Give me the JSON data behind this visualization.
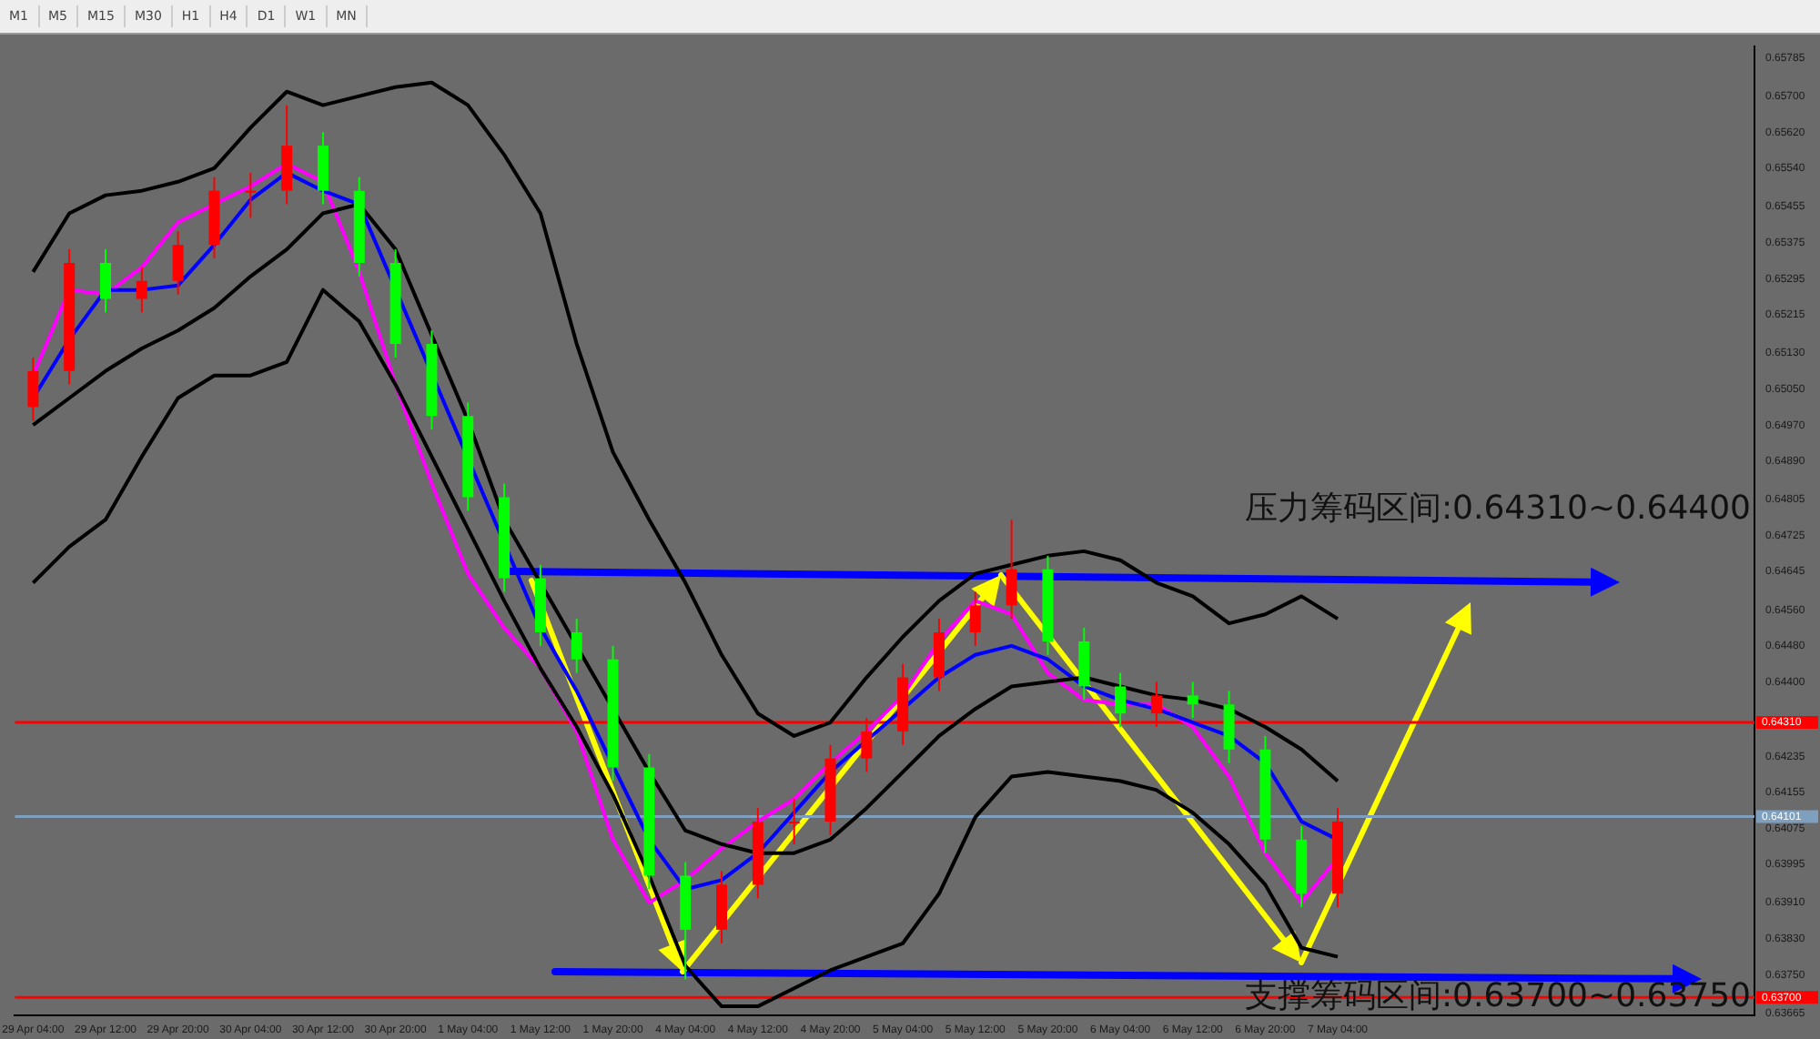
{
  "chart_data": [
    {
      "type": "other",
      "annotations": [
        "M1",
        "M5",
        "M15",
        "M30",
        "H1",
        "H4",
        "D1",
        "W1",
        "MN"
      ]
    },
    {
      "type": "candlestick",
      "annotations": [
        "压力筹码区间:0.64310~0.64400",
        {
          "text": "支撑筹码区间:0.63700~0.63750",
          "y": 0.637
        }
      ],
      "categories": [
        "29 Apr 04:00",
        null,
        "29 Apr 12:00",
        null,
        "29 Apr 20:00",
        null,
        "30 Apr 04:00",
        null,
        "30 Apr 12:00",
        null,
        "30 Apr 20:00",
        null,
        "1 May 04:00",
        null,
        "1 May 12:00",
        null,
        "1 May 20:00",
        null,
        "4 May 04:00",
        null,
        "4 May 12:00",
        null,
        "4 May 20:00",
        null,
        "5 May 04:00",
        null,
        "5 May 12:00",
        null,
        "5 May 20:00",
        null,
        "6 May 04:00",
        null,
        "6 May 12:00",
        null,
        "6 May 20:00",
        null,
        "7 May 04:00",
        null,
        null,
        null,
        null,
        null,
        null,
        null,
        null,
        null,
        null,
        null
      ],
      "ohlc": [
        [
          0.6501,
          0.6512,
          0.6498,
          0.6509
        ],
        [
          0.6509,
          0.6536,
          0.6506,
          0.6533
        ],
        [
          0.6533,
          0.6536,
          0.6522,
          0.6525
        ],
        [
          0.6525,
          0.6532,
          0.6522,
          0.6529
        ],
        [
          0.6529,
          0.654,
          0.6526,
          0.6537
        ],
        [
          0.6537,
          0.6552,
          0.6534,
          0.6549
        ],
        [
          0.6549,
          0.6553,
          0.6543,
          0.6549
        ],
        [
          0.6549,
          0.6568,
          0.6546,
          0.6559
        ],
        [
          0.6559,
          0.6562,
          0.6546,
          0.6549
        ],
        [
          0.6549,
          0.6552,
          0.653,
          0.6533
        ],
        [
          0.6533,
          0.6536,
          0.6512,
          0.6515
        ],
        [
          0.6515,
          0.6518,
          0.6496,
          0.6499
        ],
        [
          0.6499,
          0.6502,
          0.6478,
          0.6481
        ],
        [
          0.6481,
          0.6484,
          0.646,
          0.6463
        ],
        [
          0.6463,
          0.6466,
          0.6448,
          0.6451
        ],
        [
          0.6451,
          0.6454,
          0.6442,
          0.6445
        ],
        [
          0.6445,
          0.6448,
          0.6418,
          0.6421
        ],
        [
          0.6421,
          0.6424,
          0.6394,
          0.6397
        ],
        [
          0.6397,
          0.64,
          0.6374,
          0.6385
        ],
        [
          0.6385,
          0.6398,
          0.6382,
          0.6395
        ],
        [
          0.6395,
          0.6412,
          0.6392,
          0.6409
        ],
        [
          0.6409,
          0.6414,
          0.6404,
          0.6409
        ],
        [
          0.6409,
          0.6426,
          0.6406,
          0.6423
        ],
        [
          0.6423,
          0.6432,
          0.642,
          0.6429
        ],
        [
          0.6429,
          0.6444,
          0.6426,
          0.6441
        ],
        [
          0.6441,
          0.6454,
          0.6438,
          0.6451
        ],
        [
          0.6451,
          0.646,
          0.6448,
          0.6457
        ],
        [
          0.6457,
          0.6476,
          0.6454,
          0.6465
        ],
        [
          0.6465,
          0.6468,
          0.6446,
          0.6449
        ],
        [
          0.6449,
          0.6452,
          0.6436,
          0.6439
        ],
        [
          0.6439,
          0.6442,
          0.643,
          0.6433
        ],
        [
          0.6433,
          0.644,
          0.643,
          0.6437
        ],
        [
          0.6437,
          0.644,
          0.6432,
          0.6435
        ],
        [
          0.6435,
          0.6438,
          0.6422,
          0.6425
        ],
        [
          0.6425,
          0.6428,
          0.6402,
          0.6405
        ],
        [
          0.6405,
          0.6408,
          0.639,
          0.6393
        ],
        [
          0.6393,
          0.6412,
          0.639,
          0.6409
        ],
        null,
        null,
        null,
        null,
        null,
        null,
        null,
        null,
        null,
        null,
        null
      ],
      "colors": [
        "#ff0000",
        "#ff0000",
        "#00ff00",
        "#ff0000",
        "#ff0000",
        "#ff0000",
        "#ff0000",
        "#ff0000",
        "#00ff00",
        "#00ff00",
        "#00ff00",
        "#00ff00",
        "#00ff00",
        "#00ff00",
        "#00ff00",
        "#00ff00",
        "#00ff00",
        "#00ff00",
        "#00ff00",
        "#ff0000",
        "#ff0000",
        "#ff0000",
        "#ff0000",
        "#ff0000",
        "#ff0000",
        "#ff0000",
        "#ff0000",
        "#ff0000",
        "#00ff00",
        "#00ff00",
        "#00ff00",
        "#ff0000",
        "#00ff00",
        "#00ff00",
        "#00ff00",
        "#00ff00",
        "#ff0000",
        null,
        null,
        null,
        null,
        null,
        null,
        null,
        null,
        null,
        null,
        null
      ],
      "series": [
        {
          "type": "line",
          "color": "#000000",
          "values": [
            0.6531,
            0.6544,
            0.6548,
            0.6549,
            0.6551,
            0.6554,
            0.6563,
            0.6571,
            0.6568,
            0.657,
            0.6572,
            0.6573,
            0.6568,
            0.6557,
            0.6544,
            0.6515,
            0.6491,
            0.6476,
            0.6462,
            0.6446,
            0.6433,
            0.6428,
            0.6431,
            0.6441,
            0.645,
            0.6458,
            0.6464,
            0.6466,
            0.6468,
            0.6469,
            0.6467,
            0.6462,
            0.6459,
            0.6453,
            0.6455,
            0.6459,
            0.6454,
            null,
            null,
            null,
            null,
            null,
            null,
            null,
            null,
            null,
            null,
            null
          ]
        },
        {
          "type": "line",
          "color": "#000000",
          "values": [
            0.6497,
            0.6503,
            0.6509,
            0.6514,
            0.6518,
            0.6523,
            0.653,
            0.6536,
            0.6544,
            0.6546,
            0.6536,
            0.6517,
            0.6498,
            0.6476,
            0.6462,
            0.6448,
            0.6434,
            0.642,
            0.6407,
            0.6404,
            0.6402,
            0.6402,
            0.6405,
            0.6412,
            0.642,
            0.6428,
            0.6434,
            0.6439,
            0.644,
            0.6441,
            0.6439,
            0.6437,
            0.6436,
            0.6434,
            0.643,
            0.6425,
            0.6418,
            null,
            null,
            null,
            null,
            null,
            null,
            null,
            null,
            null,
            null,
            null
          ]
        },
        {
          "type": "line",
          "color": "#000000",
          "values": [
            0.6462,
            0.647,
            0.6476,
            0.649,
            0.6503,
            0.6508,
            0.6508,
            0.6511,
            0.6527,
            0.652,
            0.6506,
            0.649,
            0.6474,
            0.6458,
            0.6443,
            0.643,
            0.6415,
            0.6397,
            0.6377,
            0.6368,
            0.6368,
            0.6372,
            0.6376,
            0.6379,
            0.6382,
            0.6393,
            0.641,
            0.6419,
            0.642,
            0.6419,
            0.6418,
            0.6416,
            0.6411,
            0.6404,
            0.6395,
            0.6381,
            0.6379,
            null,
            null,
            null,
            null,
            null,
            null,
            null,
            null,
            null,
            null,
            null
          ]
        },
        {
          "type": "line",
          "color": "#0000ff",
          "values": [
            0.6503,
            0.6516,
            0.6527,
            0.6527,
            0.6528,
            0.6537,
            0.6547,
            0.6553,
            0.6549,
            0.6546,
            null,
            null,
            null,
            null,
            0.6452,
            0.6438,
            null,
            0.6405,
            0.6394,
            0.6396,
            0.6402,
            0.6411,
            0.642,
            0.6427,
            0.6434,
            0.6441,
            0.6446,
            0.6448,
            0.6445,
            0.6439,
            0.6436,
            0.6434,
            0.6431,
            0.6428,
            0.6422,
            0.6409,
            0.6405,
            null,
            null,
            null,
            null,
            null,
            null,
            null,
            null,
            null,
            null,
            null
          ]
        },
        {
          "type": "line",
          "color": "#ff00ff",
          "values": [
            0.6508,
            0.6527,
            0.6526,
            0.6532,
            0.6542,
            0.6546,
            0.655,
            0.6555,
            0.6551,
            0.6531,
            0.6506,
            0.6484,
            0.6464,
            0.6452,
            0.6443,
            0.6429,
            0.6405,
            0.6391,
            0.6396,
            0.6403,
            0.6409,
            0.6414,
            0.6422,
            0.6429,
            0.6437,
            0.6449,
            0.6458,
            0.6455,
            0.6442,
            0.6436,
            0.6435,
            0.6435,
            0.643,
            0.6419,
            0.6402,
            0.6391,
            0.6401,
            null,
            null,
            null,
            null,
            null,
            null,
            null,
            null,
            null,
            null,
            null
          ]
        }
      ],
      "ylim": [
        0.6366,
        0.6581
      ],
      "yticks": [
        0.65785,
        {
          "value": 0.657,
          "label": "0.65700"
        },
        {
          "value": 0.6562,
          "label": "0.65620"
        },
        {
          "value": 0.6554,
          "label": "0.65540"
        },
        0.65455,
        0.65375,
        0.65295,
        0.65215,
        {
          "value": 0.6513,
          "label": "0.65130"
        },
        {
          "value": 0.6505,
          "label": "0.65050"
        },
        {
          "value": 0.6497,
          "label": "0.64970"
        },
        {
          "value": 0.6489,
          "label": "0.64890"
        },
        0.64805,
        0.64725,
        0.64645,
        {
          "value": 0.6456,
          "label": "0.64560"
        },
        {
          "value": 0.6448,
          "label": "0.64480"
        },
        {
          "value": 0.644,
          "label": "0.64400"
        },
        0.64235,
        0.64155,
        0.64075,
        0.63995,
        {
          "value": 0.6391,
          "label": "0.63910"
        },
        {
          "value": 0.6383,
          "label": "0.63830"
        },
        {
          "value": 0.6375,
          "label": "0.63750"
        },
        0.63665
      ],
      "ref_lines": [
        {
          "axis": "y",
          "value": 0.6431,
          "label": "0.64310",
          "color": "#ff0000"
        },
        {
          "axis": "y",
          "value": 0.637,
          "label": "0.63700",
          "color": "#ff0000"
        },
        {
          "axis": "y",
          "value": 0.64101,
          "label": "0.64101",
          "color": "#7f9fbf"
        }
      ],
      "marker": "none",
      "line_style": "solid",
      "grid": false,
      "legend": false
    }
  ]
}
